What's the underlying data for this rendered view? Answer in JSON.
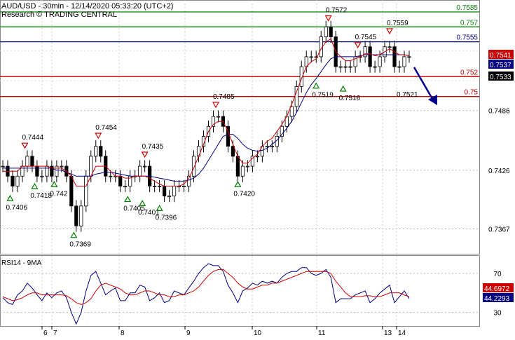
{
  "header": {
    "title": "AUD/USD - 30min - 12/14/2020 05:33:20 (UTC+2)",
    "subtitle": "Research © TRADING CENTRAL"
  },
  "colors": {
    "resistance": "#008000",
    "pivot": "#00008b",
    "support": "#cc0000",
    "candle": "#000000",
    "ma_fast": "#cc0000",
    "ma_slow": "#000080",
    "rsi_line": "#000080",
    "rsi_ma": "#cc0000",
    "arrow": "#00008b",
    "up_marker": "#008000",
    "down_marker": "#cc0000",
    "price_badge_black": "#000000",
    "price_badge_blue": "#000080",
    "price_badge_red": "#cc0000"
  },
  "chart_data": [
    {
      "type": "candlestick",
      "ylim": [
        0.7342,
        0.7597
      ],
      "y_ticks": [
        "0.7486",
        "0.7426",
        "0.7367"
      ],
      "x_ticks": [
        "6",
        "7",
        "8",
        "9",
        "10",
        "11",
        "13",
        "14"
      ],
      "levels": [
        {
          "value": 0.7585,
          "label": "0.7585",
          "kind": "resistance"
        },
        {
          "value": 0.757,
          "label": "0.757",
          "kind": "resistance"
        },
        {
          "value": 0.7555,
          "label": "0.7555",
          "kind": "pivot"
        },
        {
          "value": 0.752,
          "label": "0.752",
          "kind": "support"
        },
        {
          "value": 0.75,
          "label": "0.75",
          "kind": "support"
        }
      ],
      "current_prices": [
        {
          "value": 0.7541,
          "label": "0.7541",
          "kind": "red"
        },
        {
          "value": 0.7537,
          "label": "0.7537",
          "kind": "blue"
        },
        {
          "value": 0.7533,
          "label": "0.7533",
          "kind": "black"
        }
      ],
      "swing_lows": [
        {
          "x": 1.5,
          "value": 0.7406,
          "label": "0.7406"
        },
        {
          "x": 6.5,
          "value": 0.7418,
          "label": "0.7418"
        },
        {
          "x": 10.5,
          "value": 0.742,
          "label": "0.742"
        },
        {
          "x": 14.5,
          "value": 0.7369,
          "label": "0.7369"
        },
        {
          "x": 25.5,
          "value": 0.7405,
          "label": "0.7405"
        },
        {
          "x": 28.5,
          "value": 0.7401,
          "label": "0.7401"
        },
        {
          "x": 32,
          "value": 0.7396,
          "label": "0.7396"
        },
        {
          "x": 48,
          "value": 0.742,
          "label": "0.7420"
        },
        {
          "x": 64,
          "value": 0.7519,
          "label": "0.7519"
        },
        {
          "x": 69.5,
          "value": 0.7516,
          "label": "0.7516"
        }
      ],
      "swing_highs": [
        {
          "x": 4.5,
          "value": 0.7444,
          "label": "0.7444"
        },
        {
          "x": 19.5,
          "value": 0.7454,
          "label": "0.7454"
        },
        {
          "x": 29,
          "value": 0.7435,
          "label": "0.7435"
        },
        {
          "x": 43.5,
          "value": 0.7485,
          "label": "0.7485"
        },
        {
          "x": 66.5,
          "value": 0.7572,
          "label": "0.7572"
        },
        {
          "x": 72.5,
          "value": 0.7545,
          "label": "0.7545"
        },
        {
          "x": 79,
          "value": 0.7559,
          "label": "0.7559"
        }
      ],
      "projection_label": "0.7521",
      "closes": [
        0.743,
        0.742,
        0.741,
        0.742,
        0.743,
        0.744,
        0.743,
        0.742,
        0.742,
        0.743,
        0.742,
        0.743,
        0.743,
        0.742,
        0.739,
        0.737,
        0.739,
        0.742,
        0.744,
        0.745,
        0.744,
        0.742,
        0.742,
        0.742,
        0.741,
        0.741,
        0.742,
        0.742,
        0.743,
        0.743,
        0.741,
        0.741,
        0.741,
        0.74,
        0.74,
        0.741,
        0.741,
        0.741,
        0.742,
        0.744,
        0.745,
        0.746,
        0.747,
        0.748,
        0.748,
        0.747,
        0.745,
        0.744,
        0.742,
        0.743,
        0.743,
        0.744,
        0.744,
        0.745,
        0.745,
        0.745,
        0.746,
        0.747,
        0.748,
        0.749,
        0.751,
        0.753,
        0.754,
        0.754,
        0.754,
        0.756,
        0.757,
        0.756,
        0.753,
        0.753,
        0.753,
        0.753,
        0.754,
        0.754,
        0.755,
        0.753,
        0.753,
        0.754,
        0.755,
        0.755,
        0.753,
        0.753,
        0.754,
        0.754
      ],
      "ma_fast": [
        0.7425,
        0.7425,
        0.7425,
        0.7425,
        0.743,
        0.743,
        0.743,
        0.743,
        0.743,
        0.743,
        0.7428,
        0.7428,
        0.7428,
        0.7425,
        0.742,
        0.741,
        0.741,
        0.741,
        0.742,
        0.743,
        0.743,
        0.743,
        0.7425,
        0.742,
        0.742,
        0.7418,
        0.7418,
        0.742,
        0.742,
        0.742,
        0.7418,
        0.7415,
        0.7412,
        0.741,
        0.741,
        0.741,
        0.741,
        0.7412,
        0.7418,
        0.7428,
        0.744,
        0.7452,
        0.7465,
        0.7472,
        0.7475,
        0.7475,
        0.7465,
        0.7452,
        0.744,
        0.7433,
        0.7433,
        0.7438,
        0.7442,
        0.745,
        0.7455,
        0.7458,
        0.7465,
        0.7472,
        0.748,
        0.7492,
        0.7505,
        0.7518,
        0.753,
        0.7535,
        0.7538,
        0.7548,
        0.7555,
        0.7558,
        0.7545,
        0.754,
        0.7536,
        0.7536,
        0.7538,
        0.754,
        0.7543,
        0.7543,
        0.7541,
        0.7542,
        0.7545,
        0.7548,
        0.7545,
        0.7542,
        0.7542,
        0.7541
      ],
      "ma_slow": [
        0.7428,
        0.7428,
        0.7428,
        0.7428,
        0.7428,
        0.7428,
        0.7428,
        0.7428,
        0.7428,
        0.7428,
        0.7428,
        0.7426,
        0.7426,
        0.7424,
        0.7422,
        0.742,
        0.742,
        0.742,
        0.742,
        0.7422,
        0.7423,
        0.7424,
        0.7424,
        0.7423,
        0.7422,
        0.7421,
        0.742,
        0.742,
        0.742,
        0.742,
        0.742,
        0.7419,
        0.7418,
        0.7417,
        0.7416,
        0.7415,
        0.7415,
        0.7415,
        0.7416,
        0.7418,
        0.7422,
        0.7428,
        0.7436,
        0.7444,
        0.7452,
        0.746,
        0.7462,
        0.7462,
        0.7458,
        0.7452,
        0.7448,
        0.7446,
        0.7445,
        0.7446,
        0.7448,
        0.7452,
        0.7456,
        0.7462,
        0.7468,
        0.7475,
        0.7484,
        0.7494,
        0.7504,
        0.7512,
        0.7518,
        0.7525,
        0.7532,
        0.7538,
        0.754,
        0.754,
        0.754,
        0.754,
        0.754,
        0.7541,
        0.7542,
        0.7542,
        0.7542,
        0.7542,
        0.7542,
        0.7542,
        0.7542,
        0.7542,
        0.7542,
        0.7541
      ]
    },
    {
      "type": "line",
      "title": "RSI14 - 9MA",
      "ylim": [
        16,
        88
      ],
      "y_ticks": [
        "70",
        "30"
      ],
      "values_labels": [
        {
          "value": 44.6972,
          "label": "44.6972",
          "kind": "red"
        },
        {
          "value": 44.2293,
          "label": "44.2293",
          "kind": "blue"
        }
      ],
      "series": [
        {
          "kind": "rsi",
          "values": [
            45,
            40,
            38,
            48,
            52,
            60,
            55,
            48,
            42,
            50,
            45,
            50,
            52,
            45,
            30,
            18,
            30,
            52,
            68,
            72,
            60,
            48,
            52,
            55,
            42,
            42,
            50,
            50,
            58,
            56,
            42,
            45,
            50,
            40,
            42,
            52,
            50,
            48,
            55,
            62,
            70,
            76,
            80,
            78,
            78,
            72,
            58,
            50,
            40,
            52,
            55,
            60,
            58,
            62,
            60,
            62,
            60,
            66,
            70,
            72,
            72,
            76,
            76,
            70,
            68,
            70,
            74,
            66,
            40,
            44,
            44,
            44,
            48,
            50,
            52,
            40,
            44,
            50,
            54,
            58,
            40,
            46,
            52,
            44
          ]
        },
        {
          "kind": "ma",
          "values": [
            46,
            44,
            42,
            43,
            45,
            48,
            50,
            50,
            48,
            48,
            48,
            48,
            48,
            47,
            44,
            40,
            38,
            40,
            44,
            52,
            58,
            60,
            58,
            56,
            54,
            50,
            48,
            48,
            50,
            52,
            52,
            50,
            48,
            48,
            46,
            46,
            48,
            48,
            50,
            52,
            56,
            62,
            68,
            72,
            74,
            74,
            70,
            66,
            60,
            56,
            54,
            54,
            56,
            58,
            58,
            60,
            60,
            62,
            64,
            66,
            68,
            70,
            72,
            72,
            72,
            72,
            72,
            70,
            62,
            56,
            50,
            46,
            46,
            46,
            47,
            47,
            46,
            46,
            48,
            50,
            50,
            50,
            48,
            46
          ]
        }
      ]
    }
  ]
}
